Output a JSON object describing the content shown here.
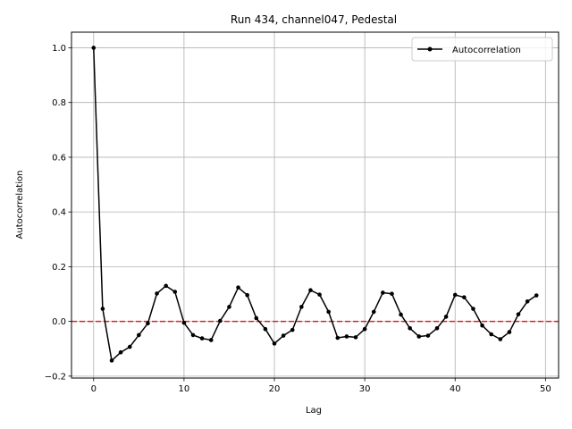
{
  "chart_data": {
    "type": "line",
    "title": "Run 434, channel047, Pedestal",
    "xlabel": "Lag",
    "ylabel": "Autocorrelation",
    "xlim": [
      -2.45,
      51.45
    ],
    "ylim": [
      -0.207,
      1.057
    ],
    "xticks": [
      0,
      10,
      20,
      30,
      40,
      50
    ],
    "xtick_labels": [
      "0",
      "10",
      "20",
      "30",
      "40",
      "50"
    ],
    "yticks": [
      -0.2,
      0.0,
      0.2,
      0.4,
      0.6,
      0.8,
      1.0
    ],
    "ytick_labels": [
      "−0.2",
      "0.0",
      "0.2",
      "0.4",
      "0.6",
      "0.8",
      "1.0"
    ],
    "grid": true,
    "legend_position": "upper-right",
    "reference_line": {
      "y": 0.0,
      "style": "dashed",
      "color": "#d62728"
    },
    "series": [
      {
        "name": "Autocorrelation",
        "color": "#000000",
        "marker": "circle",
        "x": [
          0,
          1,
          2,
          3,
          4,
          5,
          6,
          7,
          8,
          9,
          10,
          11,
          12,
          13,
          14,
          15,
          16,
          17,
          18,
          19,
          20,
          21,
          22,
          23,
          24,
          25,
          26,
          27,
          28,
          29,
          30,
          31,
          32,
          33,
          34,
          35,
          36,
          37,
          38,
          39,
          40,
          41,
          42,
          43,
          44,
          45,
          46,
          47,
          48,
          49
        ],
        "y": [
          1.0,
          0.046,
          -0.143,
          -0.113,
          -0.093,
          -0.05,
          -0.007,
          0.102,
          0.13,
          0.108,
          -0.005,
          -0.05,
          -0.062,
          -0.068,
          0.002,
          0.053,
          0.124,
          0.096,
          0.012,
          -0.028,
          -0.081,
          -0.052,
          -0.031,
          0.053,
          0.114,
          0.098,
          0.035,
          -0.06,
          -0.055,
          -0.058,
          -0.028,
          0.035,
          0.105,
          0.101,
          0.025,
          -0.025,
          -0.055,
          -0.052,
          -0.025,
          0.017,
          0.097,
          0.088,
          0.046,
          -0.015,
          -0.047,
          -0.065,
          -0.039,
          0.026,
          0.073,
          0.095
        ]
      }
    ]
  }
}
